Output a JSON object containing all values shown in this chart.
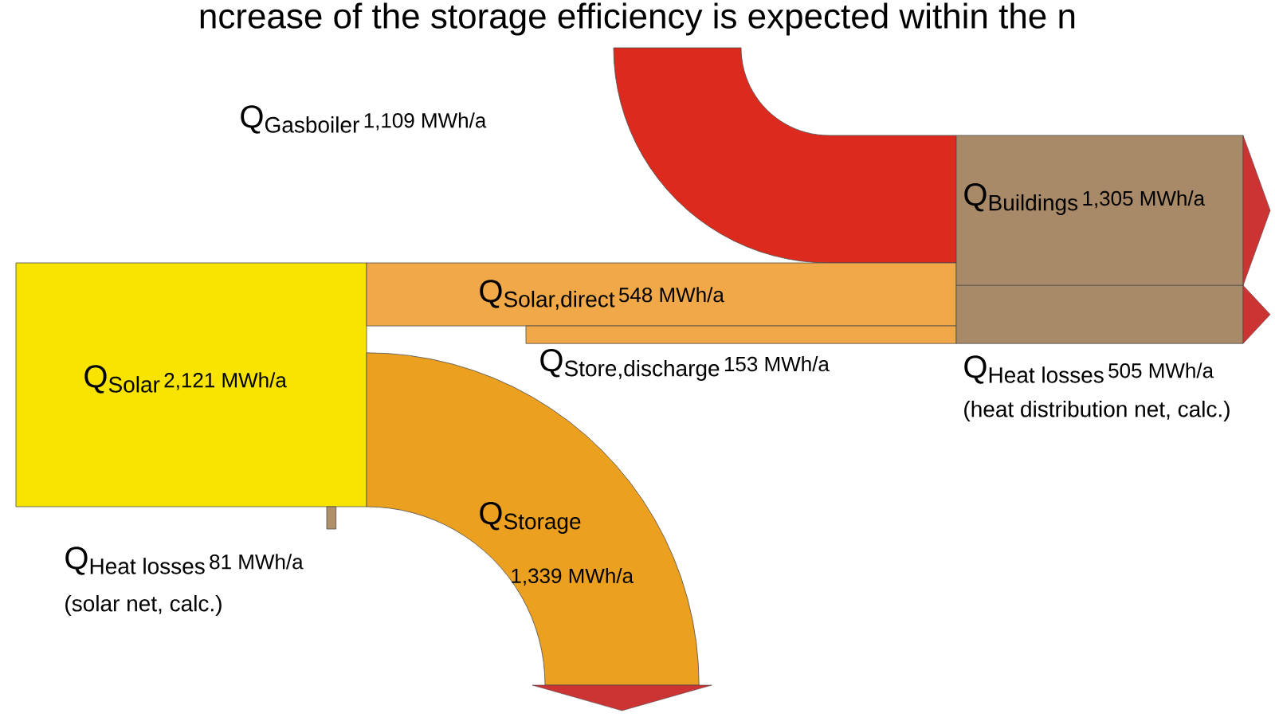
{
  "chart_data": {
    "type": "other",
    "annotations": [
      "ncrease of the storage efficiency is expected within the n",
      "(heat distribution net, calc.)",
      "(solar net, calc.)"
    ],
    "categories": [
      "\\mathrm{Q}_{\\text{Gasboiler}}",
      "\\mathrm{Q}_{\\text{Buildings}}",
      "\\mathrm{Q}_{\\text{Solar,direct}}",
      "\\mathrm{Q}_{\\text{Heat losses}}",
      "\\mathrm{Q}_{\\text{Solar}}",
      "\\mathrm{Q}_{\\text{Store,discharge}}",
      "\\mathrm{Q}_{\\text{Heat losses}}",
      "\\mathrm{Q}_{\\text{Storage}}"
    ],
    "values": [
      1109,
      1305,
      548,
      505,
      2121,
      153,
      81,
      1339
    ],
    "value_labels": [
      "1,109 MWh/a",
      "1,305 MWh/a",
      "548 MWh/a",
      "505 MWh/a",
      "2,121 MWh/a",
      "153 MWh/a",
      "81 MWh/a",
      "1,339 MWh/a"
    ],
    "colors": [
      "#dc2a1e",
      "#a88a68",
      "#f0a848",
      "#a88a68",
      "#f8e400",
      "#f0a848",
      "#b0906a",
      "#eca020"
    ]
  }
}
